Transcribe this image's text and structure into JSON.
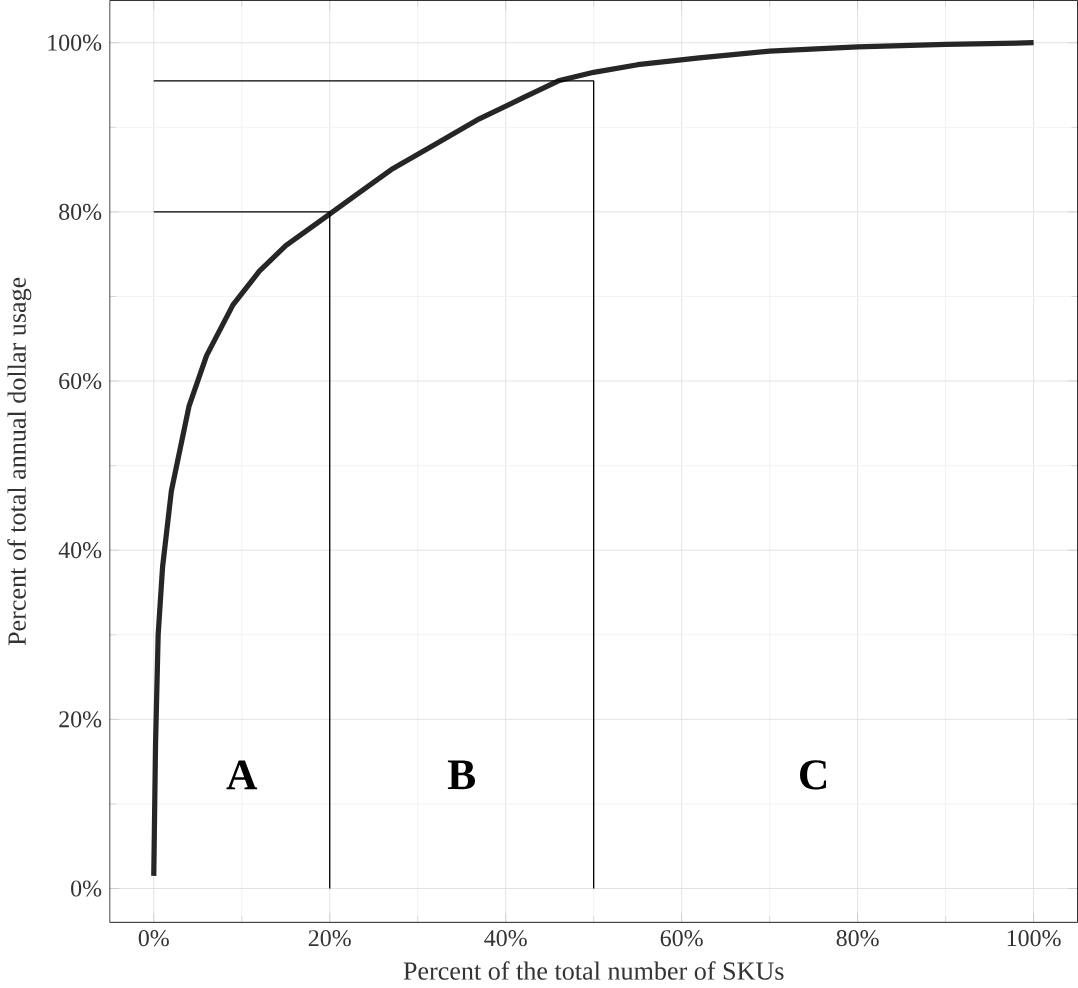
{
  "chart_data": {
    "type": "line",
    "xlabel": "Percent of the total number of SKUs",
    "ylabel": "Percent of total annual dollar usage",
    "xlim": [
      -5,
      105
    ],
    "ylim": [
      -4,
      105
    ],
    "xticks": [
      {
        "value": 0,
        "label": "0%"
      },
      {
        "value": 20,
        "label": "20%"
      },
      {
        "value": 40,
        "label": "40%"
      },
      {
        "value": 60,
        "label": "60%"
      },
      {
        "value": 80,
        "label": "80%"
      },
      {
        "value": 100,
        "label": "100%"
      }
    ],
    "yticks": [
      {
        "value": 0,
        "label": "0%"
      },
      {
        "value": 20,
        "label": "20%"
      },
      {
        "value": 40,
        "label": "40%"
      },
      {
        "value": 60,
        "label": "60%"
      },
      {
        "value": 80,
        "label": "80%"
      },
      {
        "value": 100,
        "label": "100%"
      }
    ],
    "grid": true,
    "marker": "none",
    "line_style": "solid",
    "series": [
      {
        "color": "#262626",
        "x": [
          0,
          0.2,
          0.5,
          1,
          2,
          4,
          6,
          9,
          12,
          15,
          19,
          23,
          27,
          32,
          37,
          42,
          46,
          50,
          55,
          62,
          70,
          80,
          90,
          100
        ],
        "values": [
          1.5,
          17,
          30,
          38,
          47,
          57,
          63,
          69,
          73,
          76,
          79,
          82,
          85,
          88,
          91,
          93.5,
          95.5,
          96.5,
          97.4,
          98.2,
          99,
          99.5,
          99.8,
          100
        ]
      },
      {
        "color": "#000000",
        "x": [
          0,
          20,
          20
        ],
        "values": [
          80,
          80,
          0
        ]
      },
      {
        "color": "#000000",
        "x": [
          0,
          50,
          50
        ],
        "values": [
          95.5,
          95.5,
          0
        ]
      }
    ],
    "annotations": [
      "**A**",
      "**B**",
      "**C**"
    ]
  }
}
